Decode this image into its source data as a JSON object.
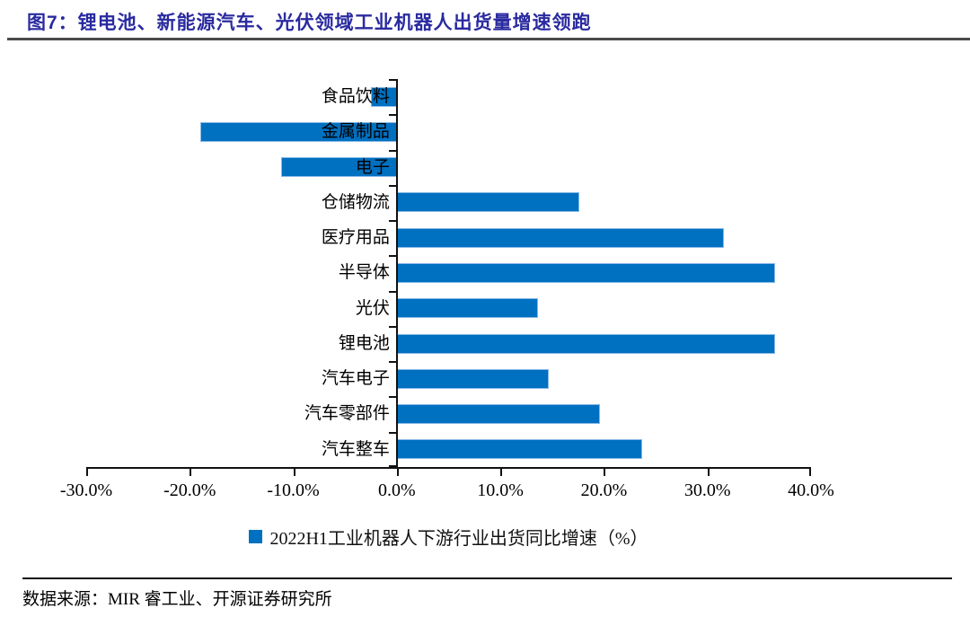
{
  "title": {
    "text": "图7：锂电池、新能源汽车、光伏领域工业机器人出货量增速领跑"
  },
  "colors": {
    "bar": "#0070C0",
    "title": "#2A2AA0",
    "axis": "#111111"
  },
  "chart_data": {
    "type": "bar",
    "orientation": "horizontal",
    "title": "图7：锂电池、新能源汽车、光伏领域工业机器人出货量增速领跑",
    "categories": [
      "食品饮料",
      "金属制品",
      "电子",
      "仓储物流",
      "医疗用品",
      "半导体",
      "光伏",
      "锂电池",
      "汽车电子",
      "汽车零部件",
      "汽车整车"
    ],
    "values": [
      -2.5,
      -19.0,
      -11.2,
      17.6,
      31.6,
      36.5,
      13.6,
      36.5,
      14.7,
      19.6,
      23.7
    ],
    "unit": "%",
    "xlim": [
      -30,
      40
    ],
    "x_ticks": [
      "-30.0%",
      "-20.0%",
      "-10.0%",
      "0.0%",
      "10.0%",
      "20.0%",
      "30.0%",
      "40.0%"
    ],
    "grid": false,
    "legend": "2022H1工业机器人下游行业出货同比增速（%）",
    "legend_position": "bottom",
    "bar_color": "#0070C0"
  },
  "footer": {
    "source": "数据来源：MIR 睿工业、开源证券研究所"
  }
}
